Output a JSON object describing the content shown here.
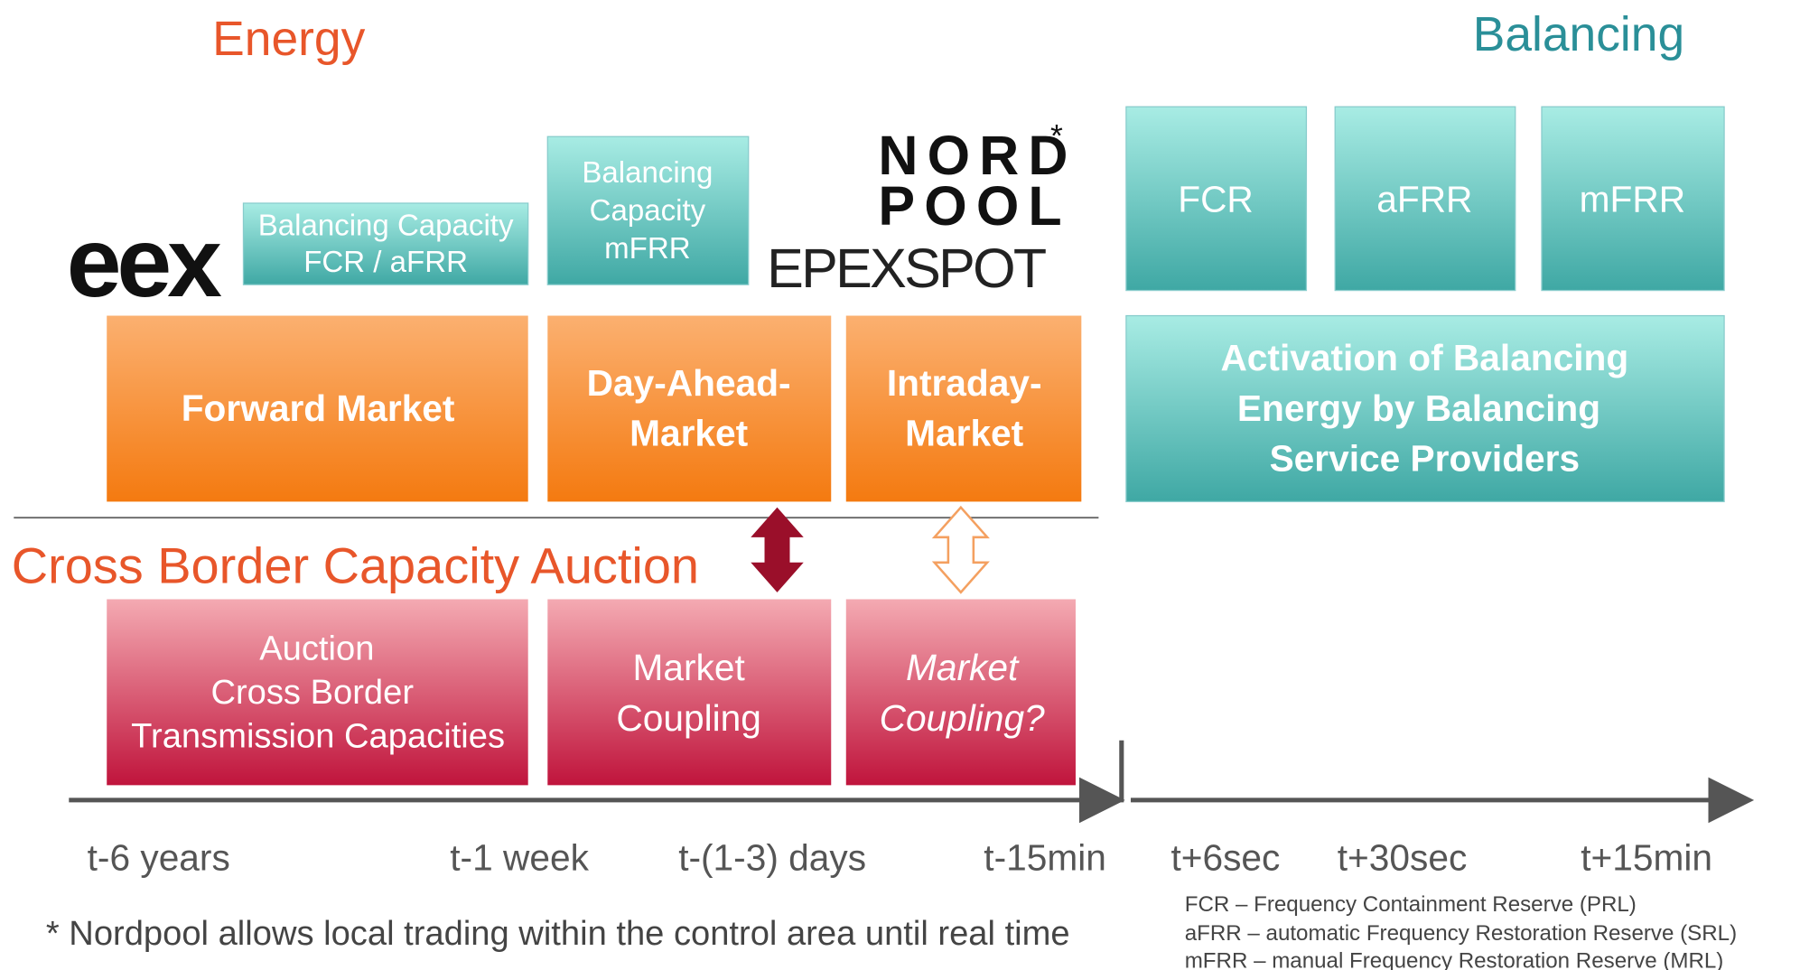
{
  "headers": {
    "energy": "Energy",
    "balancing": "Balancing",
    "cross_border": "Cross Border Capacity Auction"
  },
  "logos": {
    "eex": "eex",
    "nordpool": [
      "NORD",
      "POOL"
    ],
    "asterisk": "*",
    "epexspot": "EPEXSPOT"
  },
  "capacity_boxes": [
    [
      "Balancing Capacity",
      "FCR / aFRR"
    ],
    [
      "Balancing",
      "Capacity",
      "mFRR"
    ]
  ],
  "balancing_boxes": [
    "FCR",
    "aFRR",
    "mFRR"
  ],
  "market_boxes": [
    [
      "Forward Market"
    ],
    [
      "Day-Ahead-",
      "Market"
    ],
    [
      "Intraday-",
      "Market"
    ]
  ],
  "activation_box": [
    "Activation of Balancing",
    "Energy by Balancing",
    "Service Providers"
  ],
  "coupling_boxes": [
    [
      "Auction",
      "Cross Border",
      "Transmission Capacities"
    ],
    [
      "Market",
      "Coupling"
    ],
    [
      "Market",
      "Coupling?"
    ]
  ],
  "timeline": [
    "t-6 years",
    "t-1 week",
    "t-(1-3) days",
    "t-15min",
    "t+6sec",
    "t+30sec",
    "t+15min"
  ],
  "footnote": "* Nordpool allows local trading within the control area until real time",
  "legend": [
    "FCR – Frequency Containment Reserve (PRL)",
    "aFRR – automatic Frequency Restoration Reserve (SRL)",
    "mFRR – manual Frequency Restoration Reserve (MRL)"
  ]
}
